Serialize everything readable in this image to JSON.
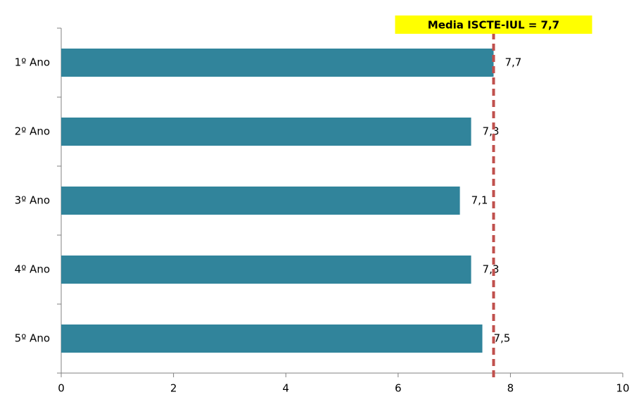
{
  "chart_data": {
    "type": "hbar",
    "categories": [
      "1º Ano",
      "2º Ano",
      "3º Ano",
      "4º Ano",
      "5º Ano"
    ],
    "values": [
      7.7,
      7.3,
      7.1,
      7.3,
      7.5
    ],
    "value_labels": [
      "7,7",
      "7,3",
      "7,1",
      "7,3",
      "7,5"
    ],
    "color": "#31849b",
    "xlim": [
      0,
      10
    ],
    "xticks": [
      0,
      2,
      4,
      6,
      8,
      10
    ],
    "reference_line": {
      "value": 7.7,
      "label": "Media ISCTE-IUL = 7,7",
      "color": "#c0504d",
      "label_background": "#ffff00"
    }
  }
}
